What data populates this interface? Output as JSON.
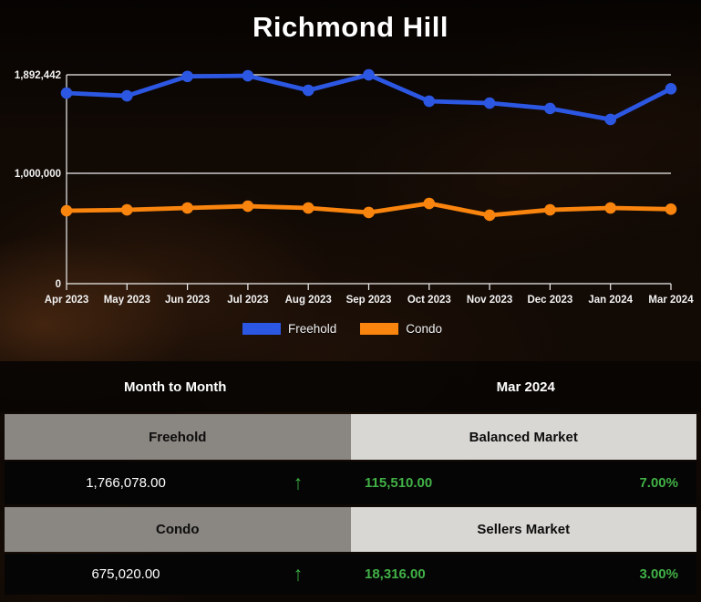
{
  "title": "Richmond Hill",
  "chart_data": {
    "type": "line",
    "title": "Richmond Hill",
    "x": [
      "Apr 2023",
      "May 2023",
      "Jun 2023",
      "Jul 2023",
      "Aug 2023",
      "Sep 2023",
      "Oct 2023",
      "Nov 2023",
      "Dec 2023",
      "Jan 2024",
      "Mar 2024"
    ],
    "series": [
      {
        "name": "Freehold",
        "color": "#2c57e2",
        "values": [
          1727000,
          1702000,
          1878000,
          1884000,
          1752000,
          1892442,
          1653000,
          1636000,
          1587000,
          1488000,
          1766078
        ]
      },
      {
        "name": "Condo",
        "color": "#f9840e",
        "values": [
          661000,
          669000,
          686000,
          702000,
          686000,
          645000,
          727000,
          620000,
          669000,
          686000,
          675020
        ]
      }
    ],
    "yticks": [
      {
        "label": "1,892,442",
        "value": 1892442
      },
      {
        "label": "1,000,000",
        "value": 1000000
      },
      {
        "label": "0",
        "value": 0
      }
    ],
    "ylim": [
      0,
      2075000
    ],
    "grid": "horizontal",
    "legend_position": "bottom",
    "axis_color": "#f0f0f0",
    "label_color": "#f2f2f2"
  },
  "table": {
    "left_header": "Month to Month",
    "right_header": "Mar 2024",
    "up_arrow_glyph": "↑",
    "rows": [
      {
        "type": "Freehold",
        "market_status": "Balanced Market",
        "price": "1,766,078.00",
        "trend": "up",
        "change": "115,510.00",
        "percent": "7.00%"
      },
      {
        "type": "Condo",
        "market_status": "Sellers Market",
        "price": "675,020.00",
        "trend": "up",
        "change": "18,316.00",
        "percent": "3.00%"
      }
    ]
  }
}
